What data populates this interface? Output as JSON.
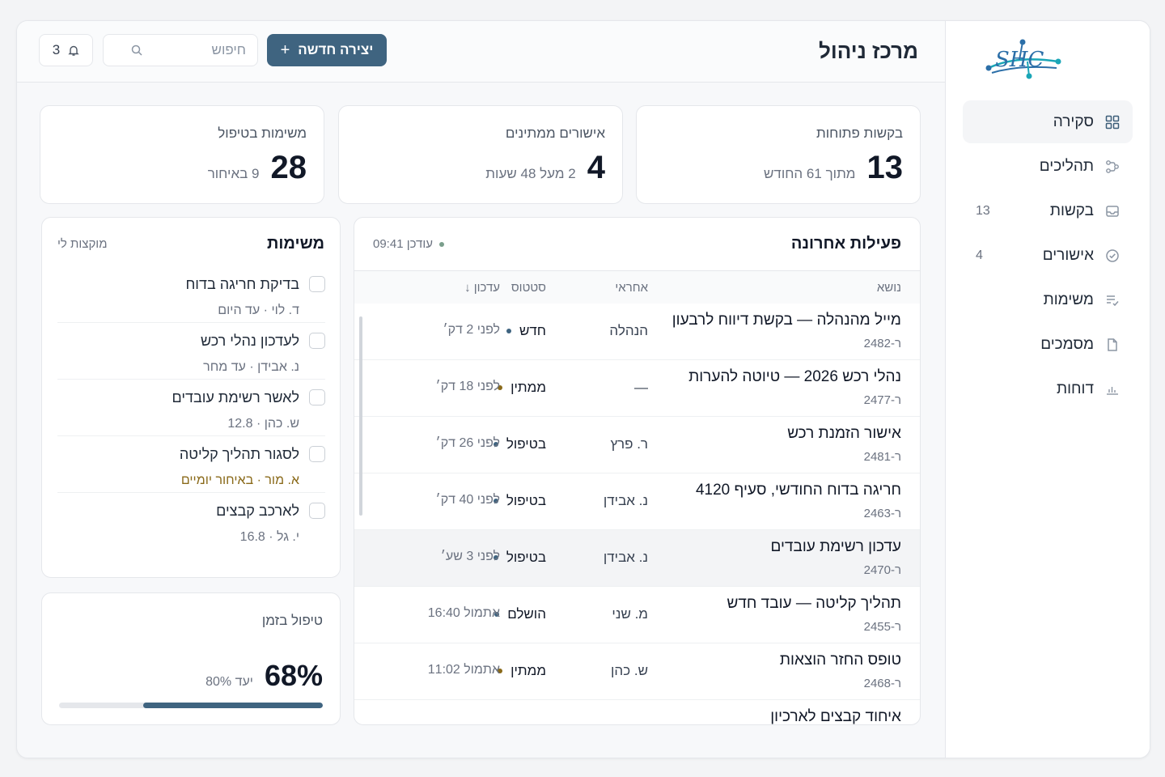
{
  "brand": {
    "logo_text": "SHC"
  },
  "sidebar": {
    "items": [
      {
        "label": "סקירה",
        "count": "",
        "icon": "grid-icon",
        "active": true
      },
      {
        "label": "תהליכים",
        "count": "",
        "icon": "workflow-icon"
      },
      {
        "label": "בקשות",
        "count": "13",
        "icon": "inbox-icon"
      },
      {
        "label": "אישורים",
        "count": "4",
        "icon": "check-circle-icon"
      },
      {
        "label": "משימות",
        "count": "",
        "icon": "list-check-icon"
      },
      {
        "label": "מסמכים",
        "count": "",
        "icon": "document-icon"
      },
      {
        "label": "דוחות",
        "count": "",
        "icon": "bar-chart-icon"
      }
    ]
  },
  "header": {
    "title": "מרכז ניהול",
    "create_label": "יצירה חדשה",
    "search_placeholder": "חיפוש",
    "notifications_count": "3"
  },
  "stats": [
    {
      "label": "בקשות פתוחות",
      "value": "13",
      "sub": "מתוך 61 החודש"
    },
    {
      "label": "אישורים ממתינים",
      "value": "4",
      "sub": "2 מעל 48 שעות"
    },
    {
      "label": "משימות בטיפול",
      "value": "28",
      "sub": "9 באיחור"
    }
  ],
  "activity": {
    "title": "פעילות אחרונה",
    "updated": "עודכן 09:41",
    "columns": {
      "subject": "נושא",
      "owner": "אחראי",
      "status": "סטטוס",
      "updated": "עדכון ↓"
    },
    "rows": [
      {
        "subject": "מייל מהנהלה — בקשת דיווח לרבעון",
        "id": "ר-2482",
        "owner": "הנהלה",
        "status": "חדש",
        "time": "לפני 2 דק׳"
      },
      {
        "subject": "נהלי רכש 2026 — טיוטה להערות",
        "id": "ר-2477",
        "owner": "—",
        "status": "ממתין",
        "time": "לפני 18 דק׳"
      },
      {
        "subject": "אישור הזמנת רכש",
        "id": "ר-2481",
        "owner": "ר. פרץ",
        "status": "בטיפול",
        "time": "לפני 26 דק׳"
      },
      {
        "subject": "חריגה בדוח החודשי, סעיף 4120",
        "id": "ר-2463",
        "owner": "נ. אבידן",
        "status": "בטיפול",
        "time": "לפני 40 דק׳"
      },
      {
        "subject": "עדכון רשימת עובדים",
        "id": "ר-2470",
        "owner": "נ. אבידן",
        "status": "בטיפול",
        "time": "לפני 3 שע׳"
      },
      {
        "subject": "תהליך קליטה — עובד חדש",
        "id": "ר-2455",
        "owner": "מ. שני",
        "status": "הושלם",
        "time": "אתמול 16:40"
      },
      {
        "subject": "טופס החזר הוצאות",
        "id": "ר-2468",
        "owner": "ש. כהן",
        "status": "ממתין",
        "time": "אתמול 11:02"
      },
      {
        "subject": "איחוד קבצים לארכיון",
        "id": "",
        "owner": "",
        "status": "",
        "time": ""
      }
    ]
  },
  "tasks": {
    "title": "משימות",
    "focus_label": "מוקצות לי",
    "items": [
      {
        "name": "בדיקת חריגה בדוח",
        "meta": "ד. לוי · עד היום"
      },
      {
        "name": "לעדכון נהלי רכש",
        "meta": "נ. אבידן · עד מחר"
      },
      {
        "name": "לאשר רשימת עובדים",
        "meta": "ש. כהן · 12.8"
      },
      {
        "name": "לסגור תהליך קליטה",
        "meta": "א. מור · באיחור יומיים"
      },
      {
        "name": "לארכב קבצים",
        "meta": "י. גל · 16.8"
      }
    ]
  },
  "on_time": {
    "label": "טיפול בזמן",
    "value": "68%",
    "target": "יעד 80%",
    "progress": 0.68
  },
  "colors": {
    "accent": "#3f6480",
    "status_new": "#3f6480",
    "status_pending": "#8a6a1a",
    "status_done": "#3f6480"
  }
}
